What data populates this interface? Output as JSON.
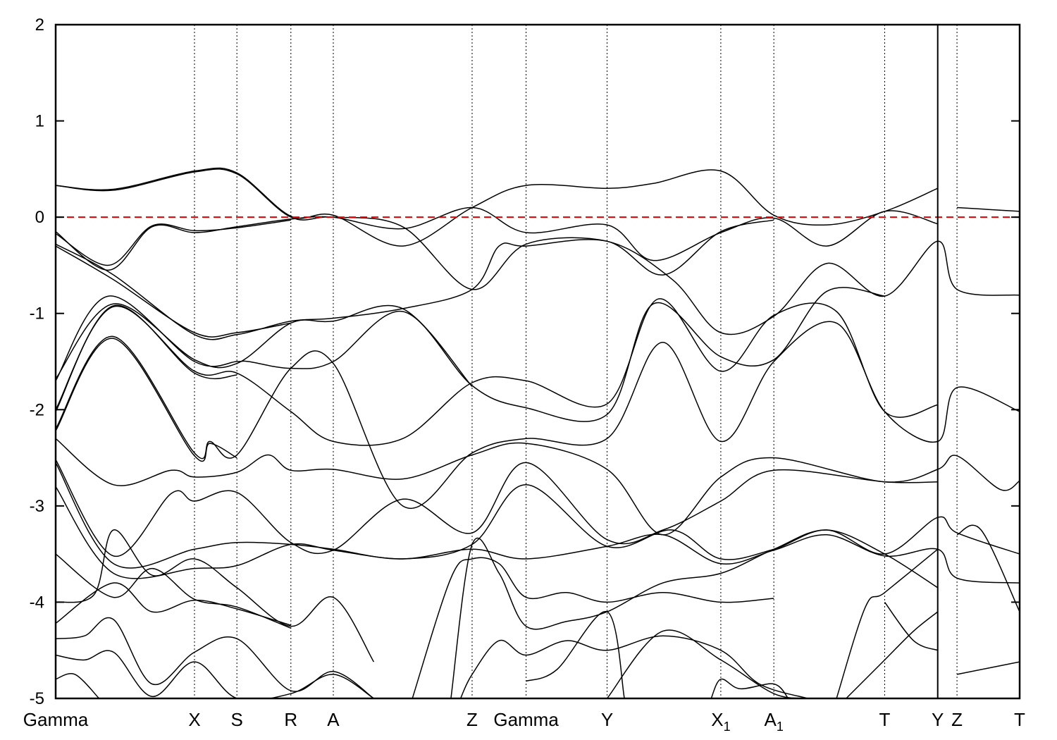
{
  "chart_data": {
    "type": "line",
    "title": "",
    "xlabel": "",
    "ylabel": "",
    "ylim": [
      -5,
      2
    ],
    "yticks": [
      2,
      1,
      0,
      -1,
      -2,
      -3,
      -4,
      -5
    ],
    "reference_line": {
      "y": 0,
      "color": "#e00000",
      "style": "dashed"
    },
    "kpath": [
      {
        "label": "Gamma",
        "sub": "",
        "x": 0.0
      },
      {
        "label": "X",
        "sub": "",
        "x": 1.44
      },
      {
        "label": "S",
        "sub": "",
        "x": 1.88
      },
      {
        "label": "R",
        "sub": "",
        "x": 2.44
      },
      {
        "label": "A",
        "sub": "",
        "x": 2.88
      },
      {
        "label": "Z",
        "sub": "",
        "x": 4.32
      },
      {
        "label": "Gamma",
        "sub": "",
        "x": 4.88
      },
      {
        "label": "Y",
        "sub": "",
        "x": 5.72
      },
      {
        "label": "X",
        "sub": "1",
        "x": 6.9
      },
      {
        "label": "A",
        "sub": "1",
        "x": 7.45
      },
      {
        "label": "T",
        "sub": "",
        "x": 8.6
      },
      {
        "label": "Y",
        "sub": "",
        "x": 9.15
      },
      {
        "label": "Z",
        "sub": "",
        "x": 9.35
      },
      {
        "label": "T",
        "sub": "",
        "x": 10.0
      }
    ],
    "xlim": [
      0,
      10
    ],
    "break_at": 9.15,
    "series": [
      {
        "x": [
          0,
          0.6,
          1.44,
          1.88,
          2.44,
          2.88,
          3.6,
          4.32,
          4.88,
          5.72,
          6.2,
          6.9,
          7.45,
          8.0,
          8.6,
          9.15
        ],
        "y": [
          0.33,
          0.29,
          0.48,
          0.46,
          0.01,
          0.02,
          -0.3,
          0.1,
          0.33,
          0.3,
          0.35,
          0.48,
          0.02,
          -0.08,
          0.06,
          0.3
        ]
      },
      {
        "x": [
          0,
          0.6,
          1.44,
          1.88,
          2.44,
          2.88,
          3.6,
          4.32,
          4.88,
          5.72,
          6.2,
          6.9,
          7.45,
          8.0,
          8.6,
          9.15
        ],
        "y": [
          0.33,
          0.28,
          0.47,
          0.45,
          0.0,
          0.0,
          -0.12,
          0.1,
          -0.16,
          -0.08,
          -0.45,
          -0.16,
          -0.01,
          -0.3,
          0.06,
          -0.07
        ]
      },
      {
        "x": [
          0,
          0.55,
          1.0,
          1.44,
          1.88,
          2.44,
          2.88,
          3.6,
          4.32,
          4.88,
          5.72,
          6.3,
          6.9,
          7.45
        ],
        "y": [
          -0.15,
          -0.55,
          -0.1,
          -0.16,
          -0.1,
          -0.02,
          0.0,
          -0.1,
          -0.75,
          -0.28,
          -0.25,
          -0.6,
          -0.15,
          -0.03
        ]
      },
      {
        "x": [
          0,
          0.55,
          1.0,
          1.44,
          1.88,
          2.44
        ],
        "y": [
          -0.17,
          -0.5,
          -0.09,
          -0.14,
          -0.11,
          -0.03
        ]
      },
      {
        "x": [
          0,
          0.6,
          1.44,
          1.88,
          2.44,
          2.88,
          3.6,
          4.32,
          4.6,
          4.88,
          5.72,
          6.4,
          6.9,
          7.45,
          8.0,
          8.6,
          9.15,
          9.35,
          10.0
        ],
        "y": [
          -0.28,
          -0.6,
          -1.22,
          -1.22,
          -1.08,
          -1.05,
          -0.95,
          -0.75,
          -0.3,
          -0.3,
          -0.25,
          -0.65,
          -1.2,
          -1.03,
          -0.48,
          -0.82,
          -0.25,
          -0.75,
          -0.81
        ]
      },
      {
        "x": [
          0,
          0.6,
          1.44,
          1.88,
          2.44
        ],
        "y": [
          -0.3,
          -0.65,
          -1.2,
          -1.2,
          -1.1
        ]
      },
      {
        "x": [
          0,
          0.55,
          1.44,
          1.88,
          2.0,
          2.44,
          2.88,
          3.6,
          4.32,
          4.88,
          5.72,
          6.2,
          6.9,
          7.45,
          8.0,
          8.6
        ],
        "y": [
          -1.7,
          -0.82,
          -1.5,
          -1.5,
          -1.5,
          -1.57,
          -1.5,
          -0.98,
          -1.75,
          -1.98,
          -2.05,
          -0.9,
          -1.45,
          -1.48,
          -0.77,
          -0.82
        ]
      },
      {
        "x": [
          0,
          0.6,
          1.44,
          1.88,
          2.44,
          2.88,
          3.6,
          4.32
        ],
        "y": [
          -1.68,
          -0.9,
          -1.48,
          -1.52,
          -1.1,
          -1.08,
          -0.95,
          -1.76
        ]
      },
      {
        "x": [
          0,
          0.6,
          1.44,
          1.88,
          2.44,
          2.88,
          3.6,
          4.32,
          4.88,
          5.72,
          6.25,
          6.9,
          7.45,
          8.1,
          8.6,
          9.15
        ],
        "y": [
          -2.0,
          -0.93,
          -1.6,
          -1.62,
          -2.02,
          -2.33,
          -2.3,
          -1.72,
          -1.7,
          -1.94,
          -0.85,
          -1.6,
          -1.02,
          -0.98,
          -2.02,
          -1.95
        ]
      },
      {
        "x": [
          0,
          0.6,
          1.44,
          1.88
        ],
        "y": [
          -2.02,
          -0.92,
          -1.62,
          -1.64
        ]
      },
      {
        "x": [
          0,
          0.6,
          1.44,
          1.6,
          1.88,
          2.44,
          2.88,
          3.6,
          4.32,
          4.88,
          5.72,
          6.3,
          6.9,
          7.45,
          8.1,
          8.6,
          9.15,
          9.35,
          10.0
        ],
        "y": [
          -2.2,
          -1.24,
          -2.45,
          -2.33,
          -2.47,
          -1.57,
          -1.52,
          -3.0,
          -2.45,
          -2.3,
          -2.3,
          -1.3,
          -2.33,
          -1.5,
          -1.1,
          -2.02,
          -2.33,
          -1.77,
          -2.02
        ]
      },
      {
        "x": [
          0,
          0.6,
          1.44,
          1.6,
          1.88
        ],
        "y": [
          -2.22,
          -1.26,
          -2.48,
          -2.35,
          -2.5
        ]
      },
      {
        "x": [
          0,
          0.6,
          1.2,
          1.44,
          1.88,
          2.2,
          2.44,
          2.88,
          3.6,
          4.32,
          4.88,
          5.72,
          6.3,
          6.9,
          7.45,
          8.6,
          9.15,
          9.35,
          9.8,
          10.0
        ],
        "y": [
          -2.3,
          -2.78,
          -2.63,
          -2.7,
          -2.65,
          -2.47,
          -2.63,
          -2.62,
          -2.72,
          -2.47,
          -2.35,
          -2.62,
          -3.3,
          -2.7,
          -2.5,
          -2.75,
          -2.62,
          -2.48,
          -2.83,
          -2.74
        ]
      },
      {
        "x": [
          0,
          0.6,
          1.2,
          1.44,
          1.88,
          2.44,
          2.88,
          3.6,
          4.32,
          4.88,
          5.72,
          6.3,
          6.9,
          7.45,
          8.6,
          9.15
        ],
        "y": [
          -2.52,
          -3.52,
          -2.87,
          -2.95,
          -2.86,
          -3.38,
          -3.46,
          -2.93,
          -3.28,
          -2.55,
          -3.35,
          -3.25,
          -2.95,
          -2.63,
          -2.75,
          -2.75
        ]
      },
      {
        "x": [
          0,
          0.6,
          1.44,
          1.88,
          2.44,
          2.88,
          3.6,
          4.32,
          4.88,
          5.72,
          6.4,
          6.9,
          7.45,
          8.0,
          8.6,
          9.15,
          9.35,
          10.0
        ],
        "y": [
          -2.55,
          -3.6,
          -3.45,
          -3.38,
          -3.4,
          -3.45,
          -3.55,
          -3.4,
          -2.78,
          -3.42,
          -3.25,
          -3.55,
          -3.45,
          -3.25,
          -3.5,
          -3.12,
          -3.28,
          -3.5
        ]
      },
      {
        "x": [
          0,
          0.6,
          1.44,
          1.88,
          2.44,
          2.88,
          3.6,
          4.32,
          4.88,
          5.72,
          6.3,
          6.9,
          7.45,
          8.0,
          8.6,
          9.15,
          9.35,
          10.0
        ],
        "y": [
          -2.8,
          -3.7,
          -3.65,
          -3.62,
          -3.4,
          -3.46,
          -3.55,
          -3.45,
          -3.55,
          -3.42,
          -3.3,
          -3.6,
          -3.46,
          -3.3,
          -3.52,
          -3.45,
          -3.75,
          -3.8
        ]
      },
      {
        "x": [
          0,
          0.4,
          0.6,
          1.0,
          1.44,
          1.88,
          2.44,
          2.88,
          3.3
        ],
        "y": [
          -4.0,
          -3.92,
          -3.25,
          -3.72,
          -3.55,
          -3.85,
          -4.25,
          -3.95,
          -4.62
        ]
      },
      {
        "x": [
          0,
          0.6,
          1.0,
          1.44,
          1.88,
          2.44
        ],
        "y": [
          -3.5,
          -3.95,
          -3.65,
          -3.97,
          -4.05,
          -4.27
        ]
      },
      {
        "x": [
          0,
          0.6,
          1.0,
          1.44,
          1.88,
          2.44
        ],
        "y": [
          -4.22,
          -3.8,
          -4.1,
          -3.98,
          -4.07,
          -4.24
        ]
      },
      {
        "x": [
          0,
          0.3,
          0.6,
          1.0,
          1.44,
          1.88,
          2.44,
          2.88,
          3.3
        ],
        "y": [
          -4.38,
          -4.35,
          -4.18,
          -4.85,
          -4.52,
          -4.38,
          -4.92,
          -4.72,
          -5.0
        ]
      },
      {
        "x": [
          0,
          0.3,
          0.6,
          1.0,
          1.44,
          1.88,
          2.44,
          2.88,
          3.3
        ],
        "y": [
          -4.55,
          -4.6,
          -4.52,
          -4.98,
          -4.62,
          -5.0,
          -4.95,
          -4.75,
          -5.0
        ]
      },
      {
        "x": [
          0,
          0.2,
          0.45
        ],
        "y": [
          -4.8,
          -4.75,
          -5.0
        ]
      },
      {
        "x": [
          3.7,
          4.1,
          4.32,
          4.6,
          4.88,
          5.3,
          5.72,
          6.3,
          6.9,
          7.45
        ],
        "y": [
          -5.0,
          -3.75,
          -3.55,
          -3.6,
          -3.95,
          -3.9,
          -4.0,
          -3.9,
          -4.0,
          -3.96
        ]
      },
      {
        "x": [
          4.1,
          4.32,
          4.6,
          4.88,
          5.3,
          5.72,
          6.3,
          6.9,
          7.45,
          8.0,
          8.6,
          9.15
        ],
        "y": [
          -5.0,
          -3.4,
          -3.7,
          -4.25,
          -4.2,
          -4.1,
          -3.8,
          -3.7,
          -3.45,
          -3.25,
          -3.5,
          -3.85
        ]
      },
      {
        "x": [
          4.2,
          4.32,
          4.6,
          4.88,
          5.3,
          5.72,
          6.3,
          6.9,
          7.3,
          7.8
        ],
        "y": [
          -5.0,
          -4.75,
          -4.4,
          -4.55,
          -4.4,
          -4.5,
          -4.35,
          -4.5,
          -4.85,
          -5.0
        ]
      },
      {
        "x": [
          4.88,
          5.2,
          5.72,
          5.9
        ],
        "y": [
          -4.82,
          -4.7,
          -4.1,
          -5.0
        ]
      },
      {
        "x": [
          5.72,
          6.3,
          6.9,
          7.45,
          7.8
        ],
        "y": [
          -5.0,
          -4.3,
          -4.6,
          -4.95,
          -5.0
        ]
      },
      {
        "x": [
          6.8,
          6.9,
          7.1,
          7.45,
          7.6
        ],
        "y": [
          -5.0,
          -4.8,
          -4.9,
          -4.85,
          -5.0
        ]
      },
      {
        "x": [
          8.1,
          8.4,
          8.6,
          9.15
        ],
        "y": [
          -5.0,
          -4.05,
          -3.9,
          -3.45
        ]
      },
      {
        "x": [
          8.2,
          8.6,
          8.9,
          9.15
        ],
        "y": [
          -5.0,
          -4.6,
          -4.3,
          -4.1
        ]
      },
      {
        "x": [
          8.6,
          8.9,
          9.15
        ],
        "y": [
          -4.0,
          -4.4,
          -4.5
        ]
      },
      {
        "x": [
          9.35,
          10.0
        ],
        "y": [
          -4.75,
          -4.62
        ]
      },
      {
        "x": [
          9.35,
          9.6,
          10.0
        ],
        "y": [
          -3.3,
          -3.25,
          -4.1
        ]
      },
      {
        "x": [
          9.35,
          10.0
        ],
        "y": [
          0.1,
          0.06
        ]
      }
    ]
  }
}
